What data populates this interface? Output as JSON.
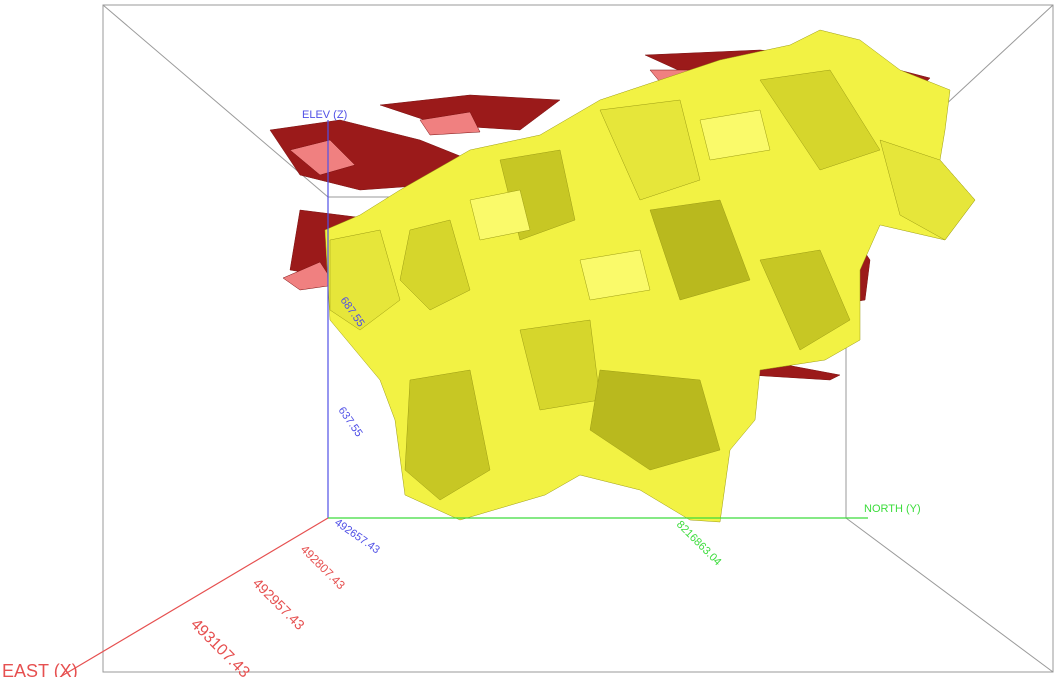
{
  "view": {
    "background_color": "#ffffff",
    "box_color": "#9a9a9a"
  },
  "axes": {
    "elev": {
      "label": "ELEV (Z)",
      "color": "#5050e6",
      "tick_labels": [
        "687.55",
        "637.55"
      ]
    },
    "north": {
      "label": "NORTH (Y)",
      "color": "#3cdc3c",
      "tick_labels": [
        "8216863.04"
      ]
    },
    "east": {
      "label": "EAST (X)",
      "color": "#e65050",
      "tick_labels": [
        "492807.43",
        "492957.43",
        "493107.43"
      ]
    },
    "origin_label": "492657.43"
  },
  "solids": [
    {
      "name": "yellow-orebody",
      "front_color": "#f2f244",
      "shadow_color": "#b9b91e"
    },
    {
      "name": "red-orebody",
      "front_color": "#9b1a1a",
      "light_color": "#f08080"
    }
  ]
}
